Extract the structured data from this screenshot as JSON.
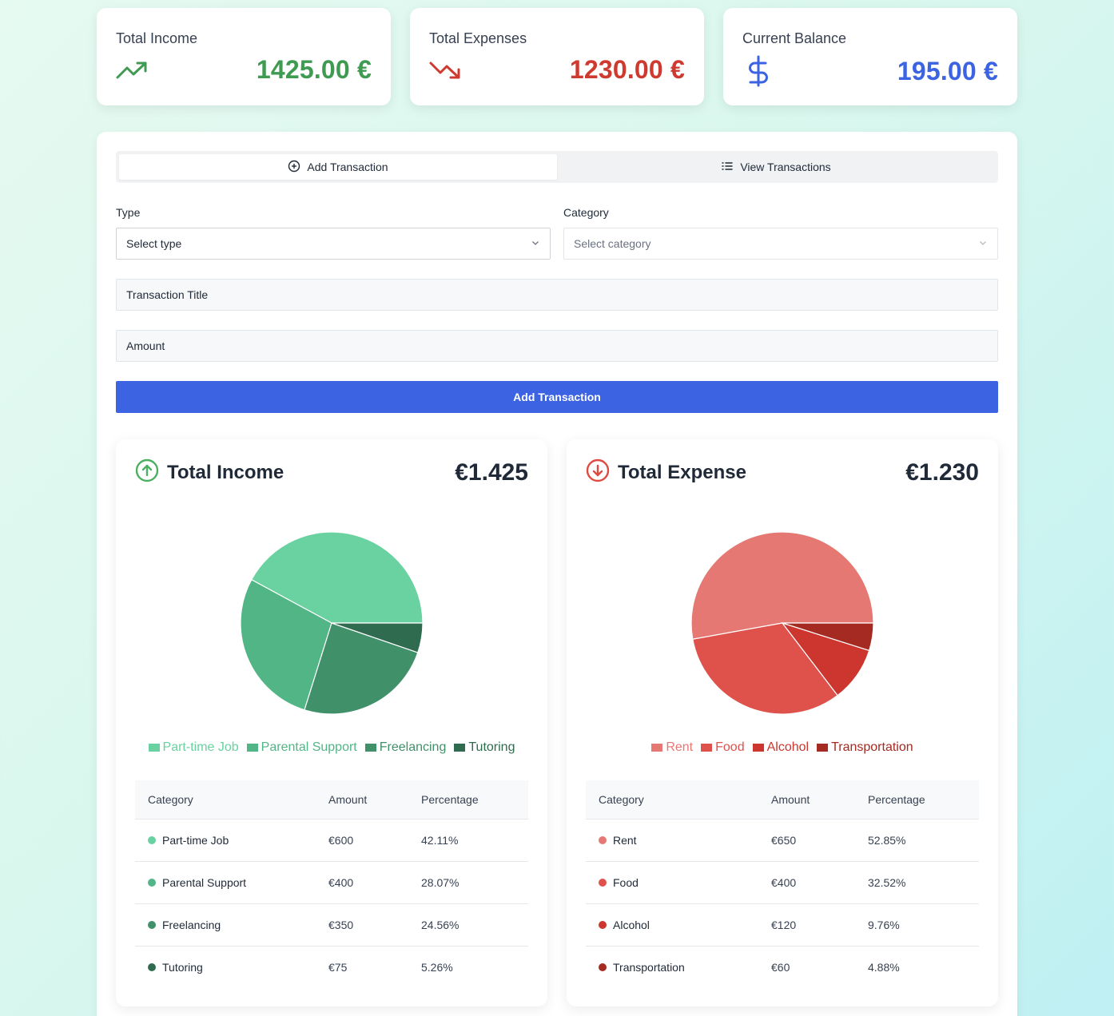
{
  "summary": {
    "income": {
      "label": "Total Income",
      "value": "1425.00 €",
      "color": "#3f9a52",
      "icon": "trending-up-icon"
    },
    "expenses": {
      "label": "Total Expenses",
      "value": "1230.00 €",
      "color": "#cf3a30",
      "icon": "trending-down-icon"
    },
    "balance": {
      "label": "Current Balance",
      "value": "195.00 €",
      "color": "#3b63e2",
      "icon": "dollar-icon"
    }
  },
  "tabs": {
    "add": {
      "label": "Add Transaction",
      "icon": "plus-circle-icon"
    },
    "view": {
      "label": "View Transactions",
      "icon": "list-icon"
    }
  },
  "form": {
    "type_label": "Type",
    "type_value": "Select type",
    "category_label": "Category",
    "category_placeholder": "Select category",
    "title_placeholder": "Transaction Title",
    "amount_placeholder": "Amount",
    "submit_label": "Add Transaction"
  },
  "income_panel": {
    "title": "Total Income",
    "total": "€1.425",
    "icon": "arrow-up-circle-icon",
    "table_headers": [
      "Category",
      "Amount",
      "Percentage"
    ],
    "rows": [
      {
        "category": "Part-time Job",
        "amount": "€600",
        "percentage": "42.11%",
        "color": "#6ad1a0"
      },
      {
        "category": "Parental Support",
        "amount": "€400",
        "percentage": "28.07%",
        "color": "#52b585"
      },
      {
        "category": "Freelancing",
        "amount": "€350",
        "percentage": "24.56%",
        "color": "#40916a"
      },
      {
        "category": "Tutoring",
        "amount": "€75",
        "percentage": "5.26%",
        "color": "#2f6b4f"
      }
    ]
  },
  "expense_panel": {
    "title": "Total Expense",
    "total": "€1.230",
    "icon": "arrow-down-circle-icon",
    "table_headers": [
      "Category",
      "Amount",
      "Percentage"
    ],
    "rows": [
      {
        "category": "Rent",
        "amount": "€650",
        "percentage": "52.85%",
        "color": "#e57872"
      },
      {
        "category": "Food",
        "amount": "€400",
        "percentage": "32.52%",
        "color": "#df524c"
      },
      {
        "category": "Alcohol",
        "amount": "€120",
        "percentage": "9.76%",
        "color": "#cc362e"
      },
      {
        "category": "Transportation",
        "amount": "€60",
        "percentage": "4.88%",
        "color": "#a42a22"
      }
    ]
  },
  "chart_data": [
    {
      "type": "pie",
      "categories": [
        "Part-time Job",
        "Parental Support",
        "Freelancing",
        "Tutoring"
      ],
      "values": [
        600,
        400,
        350,
        75
      ],
      "colors": [
        "#6ad1a0",
        "#52b585",
        "#40916a",
        "#2f6b4f"
      ],
      "legend": "bottom"
    },
    {
      "type": "pie",
      "categories": [
        "Rent",
        "Food",
        "Alcohol",
        "Transportation"
      ],
      "values": [
        650,
        400,
        120,
        60
      ],
      "colors": [
        "#e57872",
        "#df524c",
        "#cc362e",
        "#a42a22"
      ],
      "legend": "bottom"
    }
  ]
}
